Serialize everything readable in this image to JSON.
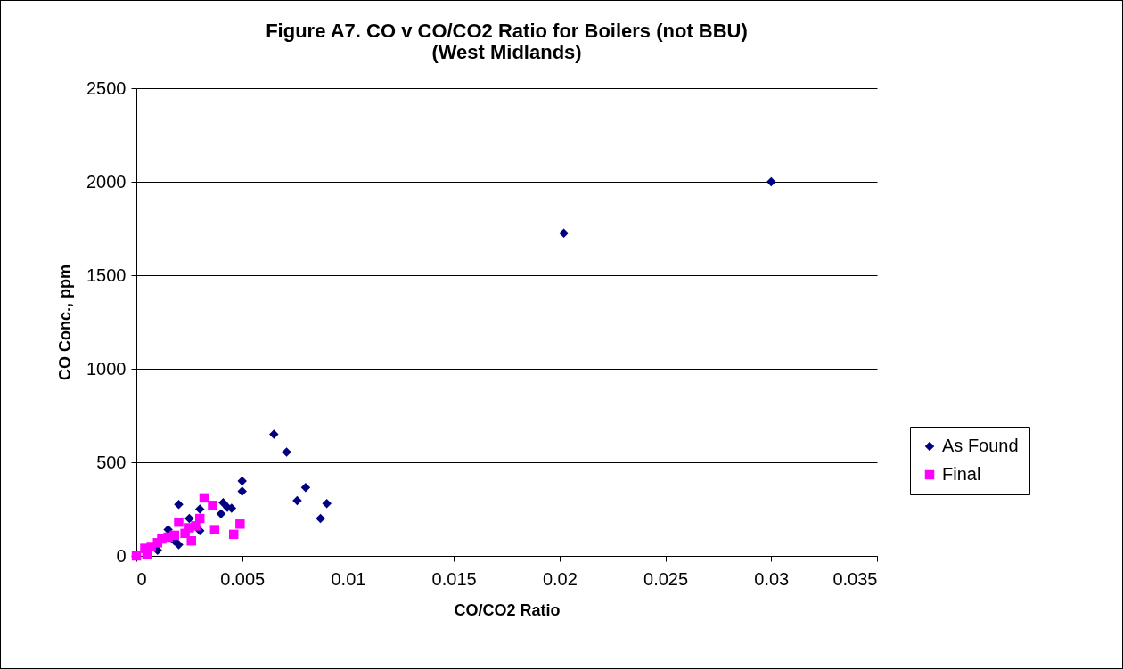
{
  "chart_data": {
    "type": "scatter",
    "title": "Figure A7.  CO v CO/CO2 Ratio for Boilers (not BBU)",
    "subtitle": "(West Midlands)",
    "xlabel": "CO/CO2 Ratio",
    "ylabel": "CO Conc., ppm",
    "xlim": [
      0,
      0.035
    ],
    "xticks": [
      0,
      0.005,
      0.01,
      0.015,
      0.02,
      0.025,
      0.03,
      0.035
    ],
    "ylim": [
      0,
      2500
    ],
    "yticks": [
      0,
      500,
      1000,
      1500,
      2000,
      2500
    ],
    "grid": "y",
    "legend": "right",
    "series": [
      {
        "name": "As Found",
        "color": "#000080",
        "marker": "diamond",
        "x": [
          0.0065,
          0.0071,
          0.0076,
          0.008,
          0.0087,
          0.009,
          0.0202,
          0.03,
          0.005,
          0.005,
          0.002,
          0.0041,
          0.0043,
          0.0045,
          0.004,
          0.003,
          0.003,
          0.0015,
          0.002,
          0.001,
          0.0025,
          0.0018
        ],
        "values": [
          650,
          555,
          295,
          365,
          200,
          280,
          1725,
          2000,
          400,
          345,
          275,
          285,
          260,
          255,
          225,
          250,
          135,
          140,
          60,
          30,
          200,
          80
        ]
      },
      {
        "name": "Final",
        "color": "#ff00ff",
        "marker": "square",
        "x": [
          0.0032,
          0.0036,
          0.0037,
          0.0046,
          0.0049,
          0.002,
          0.0025,
          0.0026,
          0.003,
          0.0018,
          0.0015,
          0.001,
          0.0007,
          0.0004,
          0,
          0.0005,
          0.0012,
          0.0023,
          0.0028
        ],
        "values": [
          310,
          270,
          140,
          115,
          170,
          180,
          150,
          80,
          200,
          110,
          100,
          70,
          50,
          40,
          0,
          10,
          90,
          120,
          160
        ]
      }
    ]
  }
}
